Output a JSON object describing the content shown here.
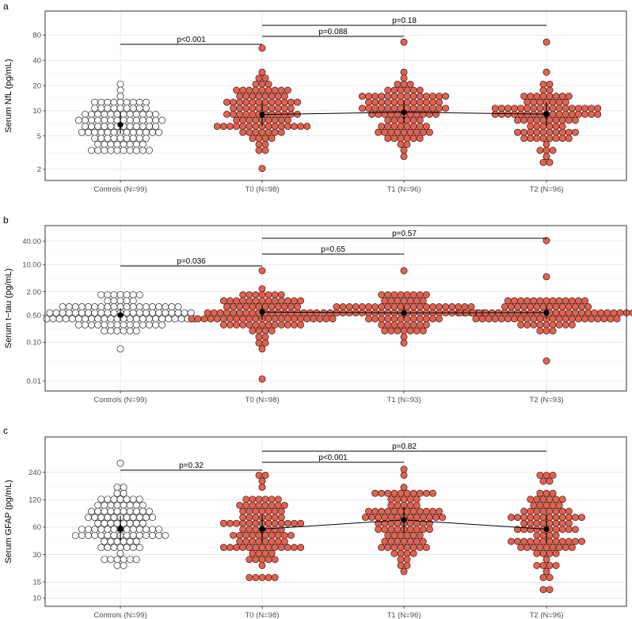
{
  "chart_data": [
    {
      "type": "scatter",
      "panel": "a",
      "ylabel": "Serum NfL (pg/mL)",
      "yscale": "log",
      "ylim": [
        1.75,
        130
      ],
      "yticks": [
        2,
        5,
        10,
        20,
        40,
        80
      ],
      "ytick_labels": [
        "2",
        "5",
        "10",
        "20",
        "40",
        "80"
      ],
      "categories": [
        "Controls (N=99)",
        "T0 (N=98)",
        "T1 (N=96)",
        "T2 (N=96)"
      ],
      "medians": [
        6.8,
        9.0,
        9.6,
        9.1
      ],
      "iqr": [
        [
          5.3,
          9.6
        ],
        [
          6.6,
          12.8
        ],
        [
          7.0,
          13.3
        ],
        [
          6.6,
          12.6
        ]
      ],
      "ranges": [
        [
          3.5,
          21
        ],
        [
          2.2,
          60
        ],
        [
          2.7,
          70
        ],
        [
          2.6,
          65
        ]
      ],
      "p_values": [
        {
          "from": 0,
          "to": 1,
          "label": "p<0.001"
        },
        {
          "from": 1,
          "to": 2,
          "label": "p=0.088"
        },
        {
          "from": 1,
          "to": 3,
          "label": "p=0.18"
        }
      ],
      "colors": {
        "control": "#ffffff",
        "patient": "#e8604c"
      }
    },
    {
      "type": "scatter",
      "panel": "b",
      "ylabel": "Serum t−tau (pg/mL)",
      "yscale": "log",
      "ylim": [
        0.008,
        70
      ],
      "yticks": [
        0.01,
        0.1,
        0.5,
        2.0,
        10.0,
        40.0
      ],
      "ytick_labels": [
        "0.01",
        "0.10",
        "0.50",
        "2.00",
        "10.00",
        "40.00"
      ],
      "categories": [
        "Controls (N=99)",
        "T0 (N=98)",
        "T1 (N=93)",
        "T2 (N=93)"
      ],
      "medians": [
        0.5,
        0.6,
        0.57,
        0.58
      ],
      "iqr": [
        [
          0.36,
          0.75
        ],
        [
          0.38,
          0.9
        ],
        [
          0.42,
          0.85
        ],
        [
          0.4,
          0.9
        ]
      ],
      "ranges": [
        [
          0.07,
          1.9
        ],
        [
          0.01,
          6
        ],
        [
          0.09,
          6.4
        ],
        [
          0.03,
          40
        ]
      ],
      "p_values": [
        {
          "from": 0,
          "to": 1,
          "label": "p=0.036"
        },
        {
          "from": 1,
          "to": 2,
          "label": "p=0.65"
        },
        {
          "from": 1,
          "to": 3,
          "label": "p=0.57"
        }
      ],
      "colors": {
        "control": "#ffffff",
        "patient": "#e8604c"
      }
    },
    {
      "type": "scatter",
      "panel": "c",
      "ylabel": "Serum GFAP (pg/mL)",
      "yscale": "log",
      "ylim": [
        9.5,
        500
      ],
      "yticks": [
        10,
        15,
        30,
        60,
        120,
        240
      ],
      "ytick_labels": [
        "10",
        "15",
        "30",
        "60",
        "120",
        "240"
      ],
      "categories": [
        "Controls (N=99)",
        "T0 (N=98)",
        "T1 (N=96)",
        "T2 (N=96)"
      ],
      "medians": [
        57,
        57,
        72,
        57
      ],
      "iqr": [
        [
          42,
          80
        ],
        [
          40,
          82
        ],
        [
          52,
          100
        ],
        [
          40,
          84
        ]
      ],
      "ranges": [
        [
          22,
          300
        ],
        [
          17,
          240
        ],
        [
          20,
          270
        ],
        [
          12,
          230
        ]
      ],
      "p_values": [
        {
          "from": 0,
          "to": 1,
          "label": "p=0.32"
        },
        {
          "from": 1,
          "to": 2,
          "label": "p<0.001"
        },
        {
          "from": 1,
          "to": 3,
          "label": "p=0.82"
        }
      ],
      "colors": {
        "control": "#ffffff",
        "patient": "#e8604c"
      }
    }
  ]
}
